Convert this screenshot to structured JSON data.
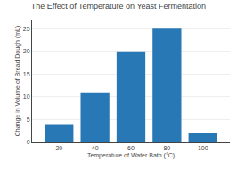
{
  "chart_data": {
    "type": "bar",
    "title": "The Effect of Temperature on Yeast Fermentation",
    "xlabel": "Temperature of Water Bath (°C)",
    "ylabel": "Change in Volume of Bread Dough (mL)",
    "x": [
      20,
      40,
      60,
      80,
      100
    ],
    "values": [
      4,
      11,
      20,
      25,
      2
    ],
    "color": "#2878b5",
    "xlim": [
      5,
      115
    ],
    "xticks": [
      20,
      40,
      60,
      80,
      100
    ],
    "ylim": [
      0,
      27
    ],
    "yticks": [
      0,
      5,
      10,
      15,
      20,
      25
    ],
    "grid": true
  }
}
